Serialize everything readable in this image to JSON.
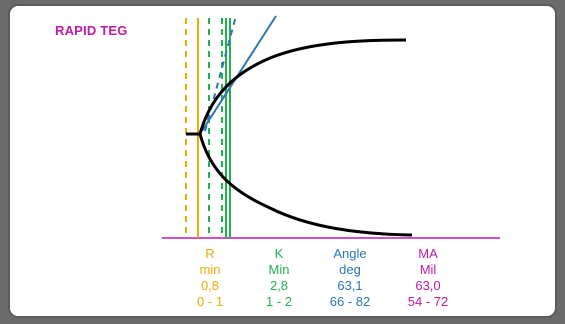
{
  "title": "RAPID TEG",
  "colors": {
    "r": "#f2a900",
    "k": "#22b14c",
    "angle": "#2e75b6",
    "ma": "#c01aa8",
    "curve": "#000000"
  },
  "params": {
    "r": {
      "label": "R",
      "unit": "min",
      "value": "0,8",
      "range": "0 - 1"
    },
    "k": {
      "label": "K",
      "unit": "Min",
      "value": "2,8",
      "range": "1 - 2"
    },
    "angle": {
      "label": "Angle",
      "unit": "deg",
      "value": "63,1",
      "range": "66 - 82"
    },
    "ma": {
      "label": "MA",
      "unit": "Mil",
      "value": "63,0",
      "range": "54 - 72"
    }
  }
}
